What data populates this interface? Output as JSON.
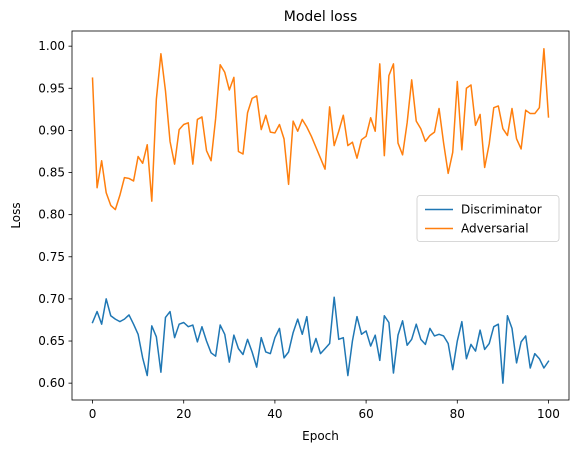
{
  "chart_data": {
    "type": "line",
    "title": "Model loss",
    "xlabel": "Epoch",
    "ylabel": "Loss",
    "xlim": [
      -4.5,
      104.5
    ],
    "ylim": [
      0.58,
      1.018
    ],
    "xticks": [
      0,
      20,
      40,
      60,
      80,
      100
    ],
    "yticks": [
      0.6,
      0.65,
      0.7,
      0.75,
      0.8,
      0.85,
      0.9,
      0.95,
      1.0
    ],
    "ytick_labels": [
      "0.60",
      "0.65",
      "0.70",
      "0.75",
      "0.80",
      "0.85",
      "0.90",
      "0.95",
      "1.00"
    ],
    "grid": false,
    "legend": {
      "position": "center-right"
    },
    "series": [
      {
        "name": "Discriminator",
        "color": "#1f77b4",
        "y": [
          0.672,
          0.685,
          0.67,
          0.7,
          0.68,
          0.676,
          0.673,
          0.676,
          0.681,
          0.67,
          0.658,
          0.63,
          0.609,
          0.668,
          0.655,
          0.613,
          0.678,
          0.685,
          0.654,
          0.67,
          0.672,
          0.667,
          0.669,
          0.649,
          0.667,
          0.65,
          0.636,
          0.632,
          0.669,
          0.658,
          0.625,
          0.657,
          0.641,
          0.634,
          0.652,
          0.637,
          0.619,
          0.654,
          0.637,
          0.635,
          0.654,
          0.665,
          0.63,
          0.637,
          0.66,
          0.676,
          0.658,
          0.679,
          0.637,
          0.653,
          0.635,
          0.641,
          0.647,
          0.702,
          0.652,
          0.654,
          0.609,
          0.65,
          0.679,
          0.658,
          0.662,
          0.644,
          0.657,
          0.627,
          0.68,
          0.672,
          0.612,
          0.657,
          0.674,
          0.645,
          0.652,
          0.67,
          0.652,
          0.646,
          0.665,
          0.656,
          0.658,
          0.656,
          0.647,
          0.616,
          0.65,
          0.673,
          0.629,
          0.646,
          0.638,
          0.663,
          0.64,
          0.647,
          0.667,
          0.67,
          0.6,
          0.68,
          0.665,
          0.624,
          0.649,
          0.656,
          0.618,
          0.635,
          0.629,
          0.618,
          0.626
        ]
      },
      {
        "name": "Adversarial",
        "color": "#ff7f0e",
        "y": [
          0.962,
          0.832,
          0.864,
          0.826,
          0.811,
          0.806,
          0.823,
          0.844,
          0.843,
          0.84,
          0.869,
          0.861,
          0.883,
          0.816,
          0.937,
          0.991,
          0.947,
          0.887,
          0.86,
          0.901,
          0.907,
          0.909,
          0.86,
          0.913,
          0.916,
          0.876,
          0.864,
          0.914,
          0.978,
          0.969,
          0.948,
          0.963,
          0.875,
          0.872,
          0.921,
          0.938,
          0.941,
          0.901,
          0.918,
          0.898,
          0.897,
          0.907,
          0.89,
          0.836,
          0.911,
          0.899,
          0.913,
          0.904,
          0.893,
          0.88,
          0.867,
          0.854,
          0.928,
          0.882,
          0.899,
          0.918,
          0.882,
          0.886,
          0.867,
          0.889,
          0.893,
          0.915,
          0.899,
          0.979,
          0.87,
          0.965,
          0.979,
          0.885,
          0.871,
          0.909,
          0.96,
          0.911,
          0.902,
          0.887,
          0.894,
          0.898,
          0.926,
          0.885,
          0.849,
          0.874,
          0.958,
          0.877,
          0.95,
          0.954,
          0.906,
          0.919,
          0.856,
          0.884,
          0.927,
          0.929,
          0.902,
          0.894,
          0.926,
          0.89,
          0.878,
          0.924,
          0.92,
          0.92,
          0.927,
          0.997,
          0.916
        ]
      }
    ]
  }
}
